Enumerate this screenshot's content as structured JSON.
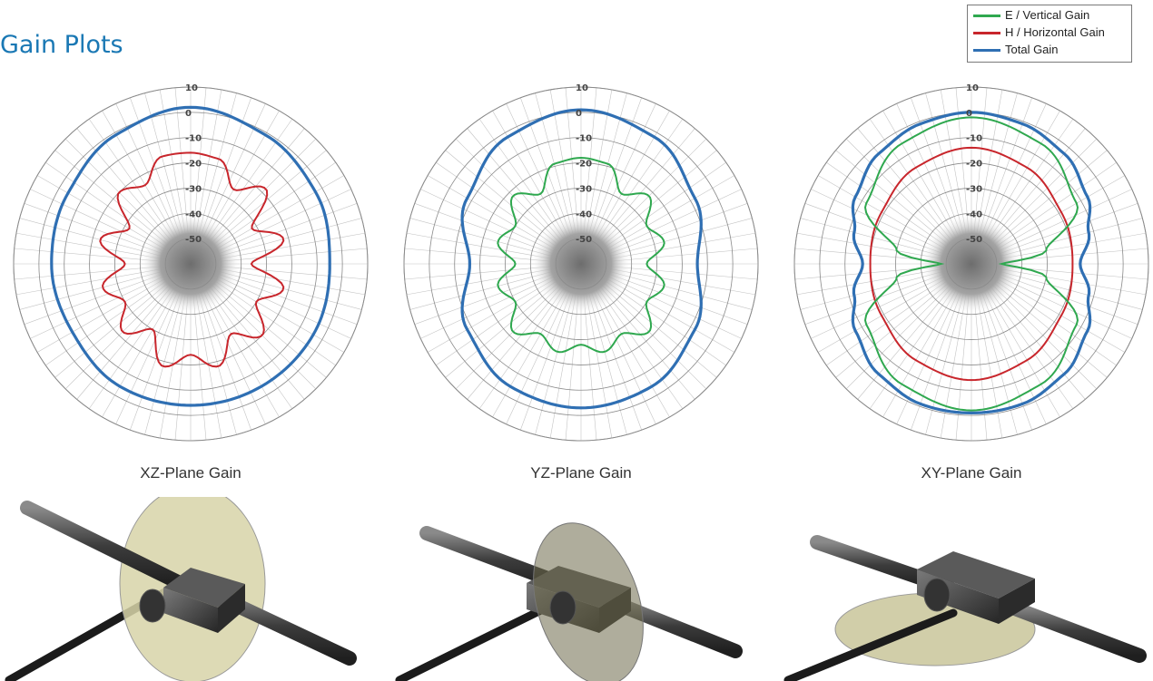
{
  "title": "Gain Plots",
  "legend": [
    {
      "label": "E / Vertical Gain",
      "color": "#2fa84f"
    },
    {
      "label": "H / Horizontal Gain",
      "color": "#c8262c"
    },
    {
      "label": "Total Gain",
      "color": "#2f6fb3"
    }
  ],
  "chart_data": [
    {
      "type": "polar-line",
      "caption": "XZ-Plane Gain",
      "rlim": [
        -60,
        10
      ],
      "r_ticks": [
        10,
        0,
        -10,
        -20,
        -30,
        -40,
        -50
      ],
      "angle_step_deg": 5,
      "series": [
        {
          "name": "Total Gain",
          "color": "#2f6fb3",
          "angles_deg": [
            0,
            30,
            60,
            90,
            120,
            150,
            180,
            210,
            240,
            270,
            300,
            330
          ],
          "gain_db": [
            2,
            -1,
            -3,
            -5,
            -4,
            -4,
            -4,
            -4,
            -6,
            -5,
            -4,
            -1
          ]
        },
        {
          "name": "H / Horizontal Gain",
          "color": "#c8262c",
          "angles_deg": [
            0,
            15,
            30,
            45,
            60,
            75,
            90,
            105,
            120,
            135,
            150,
            165,
            180,
            195,
            210,
            225,
            240,
            255,
            270,
            285,
            300,
            315,
            330,
            345
          ],
          "gain_db": [
            -16,
            -17,
            -26,
            -18,
            -32,
            -22,
            -36,
            -22,
            -30,
            -20,
            -28,
            -18,
            -24,
            -18,
            -30,
            -22,
            -30,
            -24,
            -34,
            -23,
            -32,
            -20,
            -24,
            -16
          ]
        }
      ]
    },
    {
      "type": "polar-line",
      "caption": "YZ-Plane Gain",
      "rlim": [
        -60,
        10
      ],
      "r_ticks": [
        10,
        0,
        -10,
        -20,
        -30,
        -40,
        -50
      ],
      "angle_step_deg": 5,
      "series": [
        {
          "name": "Total Gain",
          "color": "#2f6fb3",
          "angles_deg": [
            0,
            30,
            60,
            90,
            120,
            150,
            180,
            210,
            240,
            270,
            300,
            330
          ],
          "gain_db": [
            1,
            -2,
            -8,
            -14,
            -8,
            -4,
            -3,
            -4,
            -8,
            -16,
            -8,
            -2
          ]
        },
        {
          "name": "E / Vertical Gain",
          "color": "#2fa84f",
          "angles_deg": [
            0,
            15,
            30,
            45,
            60,
            75,
            90,
            105,
            120,
            135,
            150,
            165,
            180,
            195,
            210,
            225,
            240,
            255,
            270,
            285,
            300,
            315,
            330,
            345
          ],
          "gain_db": [
            -18,
            -19,
            -28,
            -22,
            -30,
            -26,
            -34,
            -26,
            -30,
            -22,
            -28,
            -24,
            -28,
            -24,
            -28,
            -22,
            -30,
            -26,
            -34,
            -26,
            -30,
            -22,
            -28,
            -19
          ]
        }
      ]
    },
    {
      "type": "polar-line",
      "caption": "XY-Plane Gain",
      "rlim": [
        -60,
        10
      ],
      "r_ticks": [
        10,
        0,
        -10,
        -20,
        -30,
        -40,
        -50
      ],
      "angle_step_deg": 5,
      "series": [
        {
          "name": "Total Gain",
          "color": "#2f6fb3",
          "angles_deg": [
            0,
            20,
            40,
            60,
            75,
            90,
            105,
            120,
            140,
            160,
            180,
            200,
            220,
            240,
            255,
            270,
            285,
            300,
            320,
            340
          ],
          "gain_db": [
            0,
            -1,
            -3,
            -7,
            -12,
            -17,
            -12,
            -7,
            -3,
            -1,
            -1,
            -1,
            -3,
            -7,
            -12,
            -17,
            -12,
            -7,
            -3,
            -1
          ]
        },
        {
          "name": "H / Horizontal Gain",
          "color": "#c8262c",
          "angles_deg": [
            0,
            30,
            60,
            90,
            120,
            150,
            180,
            210,
            240,
            270,
            300,
            330
          ],
          "gain_db": [
            -14,
            -16,
            -19,
            -20,
            -19,
            -16,
            -14,
            -16,
            -19,
            -20,
            -19,
            -16
          ]
        },
        {
          "name": "E / Vertical Gain",
          "color": "#2fa84f",
          "angles_deg": [
            0,
            30,
            60,
            80,
            90,
            100,
            120,
            150,
            180,
            210,
            240,
            260,
            270,
            280,
            300,
            330
          ],
          "gain_db": [
            -2,
            -5,
            -12,
            -30,
            -48,
            -30,
            -12,
            -5,
            -2,
            -5,
            -12,
            -30,
            -48,
            -30,
            -12,
            -5
          ]
        }
      ]
    }
  ]
}
